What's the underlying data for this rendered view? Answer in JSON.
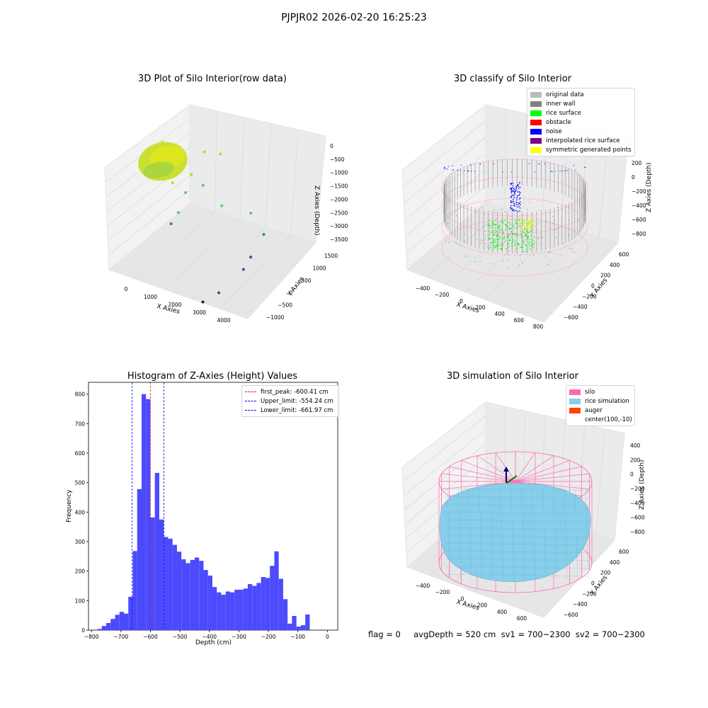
{
  "suptitle": "PJPJR02 2026-02-20 16:25:23",
  "footer": "flag = 0     avgDepth = 520 cm  sv1 = 700~2300  sv2 = 700~2300",
  "colors": {
    "histogram_bar": "#4b4bfd",
    "first_peak": "#ff0000",
    "limits": "#0000ff",
    "silo": "#ff69b4",
    "rice": "#87ceeb",
    "auger": "#ff4500",
    "original": "#bbbbbb",
    "inner_wall": "#808080",
    "rice_surface": "#00ff00",
    "obstacle": "#ff0000",
    "noise": "#0000ff",
    "interpolated": "#800080",
    "symmetric": "#ffff00"
  },
  "chart_data": [
    {
      "type": "scatter",
      "title": "3D Plot of Silo Interior(row data)",
      "xlabel": "X Axies",
      "ylabel": "Y Axies",
      "zlabel": "Z Axies (Depth)",
      "x_ticks": [
        "0",
        "1000",
        "2000",
        "3000",
        "4000"
      ],
      "y_ticks": [
        "-1000",
        "-500",
        "0",
        "500",
        "1000",
        "1500"
      ],
      "z_ticks": [
        "0",
        "-500",
        "-1000",
        "-1500",
        "-2000",
        "-2500",
        "-3000",
        "-3500"
      ],
      "xlim": [
        -500,
        4300
      ],
      "ylim": [
        -1100,
        1700
      ],
      "zlim": [
        -3700,
        0
      ],
      "colormap": "viridis",
      "points": [
        {
          "x": 400,
          "y": 300,
          "z": -450
        },
        {
          "x": 900,
          "y": 500,
          "z": -550
        },
        {
          "x": 1200,
          "y": 200,
          "z": -800
        },
        {
          "x": 1700,
          "y": 600,
          "z": -500
        },
        {
          "x": 1500,
          "y": 100,
          "z": -900
        },
        {
          "x": 2100,
          "y": 900,
          "z": -600
        },
        {
          "x": 1000,
          "y": -200,
          "z": -1100
        },
        {
          "x": 1400,
          "y": -100,
          "z": -1300
        },
        {
          "x": 1800,
          "y": 300,
          "z": -1200
        },
        {
          "x": 1300,
          "y": -400,
          "z": -1700
        },
        {
          "x": 2500,
          "y": 200,
          "z": -1500
        },
        {
          "x": 1100,
          "y": -500,
          "z": -2000
        },
        {
          "x": 3200,
          "y": 800,
          "z": -1800
        },
        {
          "x": 3600,
          "y": 900,
          "z": -2300
        },
        {
          "x": 3400,
          "y": 400,
          "z": -2700
        },
        {
          "x": 3300,
          "y": 100,
          "z": -2900
        },
        {
          "x": 2800,
          "y": -600,
          "z": -3300
        },
        {
          "x": 2400,
          "y": -900,
          "z": -3500
        }
      ]
    },
    {
      "type": "scatter",
      "title": "3D classify of Silo Interior",
      "xlabel": "X Axies",
      "ylabel": "Y Axies",
      "zlabel": "Z Axies (Depth)",
      "x_ticks": [
        "-400",
        "-200",
        "0",
        "200",
        "400",
        "600",
        "800"
      ],
      "y_ticks": [
        "-600",
        "-400",
        "-200",
        "0",
        "200",
        "400",
        "600"
      ],
      "z_ticks": [
        "200",
        "0",
        "-200",
        "-400",
        "-600",
        "-800"
      ],
      "legend": [
        "original data",
        "inner wall",
        "rice surface",
        "obstacle",
        "noise",
        "interpolated rice surface",
        "symmetric generated points"
      ]
    },
    {
      "type": "bar",
      "title": "Histogram of Z-Axies (Height) Values",
      "xlabel": "Depth (cm)",
      "ylabel": "Frequency",
      "xlim": [
        -810,
        35
      ],
      "ylim": [
        0,
        840
      ],
      "x_ticks": [
        -800,
        -700,
        -600,
        -500,
        -400,
        -300,
        -200,
        -100,
        0
      ],
      "y_ticks": [
        0,
        100,
        200,
        300,
        400,
        500,
        600,
        700,
        800
      ],
      "bin_start": -780,
      "bin_width": 15,
      "values": [
        4,
        14,
        24,
        38,
        52,
        62,
        56,
        113,
        268,
        478,
        800,
        783,
        382,
        533,
        375,
        316,
        310,
        289,
        266,
        240,
        227,
        238,
        246,
        235,
        204,
        185,
        146,
        128,
        120,
        131,
        128,
        137,
        137,
        141,
        156,
        150,
        160,
        180,
        177,
        218,
        267,
        174,
        105,
        22,
        48,
        12,
        17,
        53
      ],
      "vlines": [
        {
          "x": -600.41,
          "label": "first_peak: -600.41 cm",
          "color": "#ff0000"
        },
        {
          "x": -554.24,
          "label": "Upper_limit: -554.24 cm",
          "color": "#0000ff"
        },
        {
          "x": -661.97,
          "label": "Lower_limit: -661.97 cm",
          "color": "#0000ff"
        }
      ]
    },
    {
      "type": "area",
      "title": "3D simulation of Silo Interior",
      "xlabel": "X Axies",
      "ylabel": "Y Axies",
      "zlabel": "Z Axies (Depth)",
      "x_ticks": [
        "-400",
        "-200",
        "0",
        "200",
        "400",
        "600"
      ],
      "y_ticks": [
        "-600",
        "-400",
        "-200",
        "0",
        "200",
        "400",
        "600"
      ],
      "z_ticks": [
        "400",
        "200",
        "0",
        "-200",
        "-400",
        "-600",
        "-800"
      ],
      "legend": [
        "silo",
        "rice simulation",
        "auger",
        "center(100,-10)"
      ]
    }
  ]
}
